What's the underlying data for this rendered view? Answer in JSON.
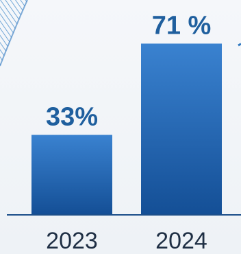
{
  "chart_data": {
    "type": "bar",
    "categories": [
      "2023",
      "2024"
    ],
    "values": [
      33,
      71
    ],
    "value_labels": [
      "33%",
      "71 %"
    ],
    "title": "",
    "xlabel": "",
    "ylabel": "",
    "ylim": [
      0,
      100
    ],
    "grid": false,
    "legend": "none"
  },
  "colors": {
    "bar_top": "#3a82d0",
    "bar_bottom": "#144f96",
    "label": "#1f5f9e",
    "axis": "#1c4f8a",
    "tick_text": "#1f2f44"
  }
}
